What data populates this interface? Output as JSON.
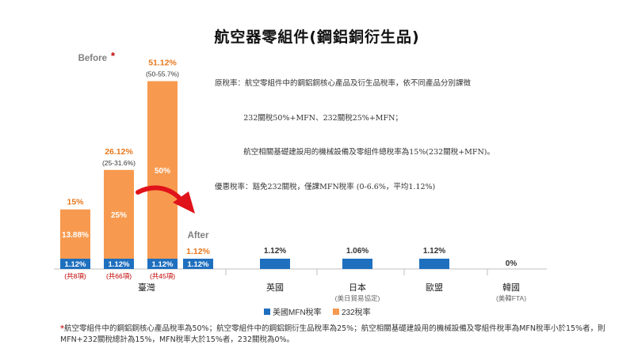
{
  "title": "航空器零組件(鋼鋁銅衍生品)",
  "note_lines": [
    "原稅率：航空零組件中的鋼鋁銅核心產品及衍生品稅率，依不同產品分別課徵",
    "            232關稅50%+MFN、232關稅25%+MFN；",
    "            航空相關基礎建設用的機械設備及零組件總稅率為15%(232關稅+MFN)。",
    "優惠稅率：豁免232關稅，僅課MFN稅率 (0-6.6%，平均1.12%)"
  ],
  "footnote_star": "*",
  "footnote": "航空零組件中的鋼鋁銅核心產品稅率為50%；航空零組件中的鋼鋁銅衍生品稅率為25%；航空相關基礎建設用的機械設備及零組件稅率為MFN稅率小於15%者，則MFN+232關稅總計為15%，MFN稅率大於15%者，232關稅為0%。",
  "before_label": "Before",
  "before_star": "*",
  "after_label": "After",
  "colors": {
    "mfn": "#1f6fbf",
    "s232": "#f79a4f",
    "before": "#7f7f7f",
    "orange_text": "#e8771c",
    "red": "#c00000",
    "arrow": "#e0121a",
    "axis": "#bfbfbf"
  },
  "chart_data": {
    "type": "bar",
    "stacked": true,
    "ylim": [
      0,
      55.7
    ],
    "series": [
      {
        "name": "美國MFN稅率",
        "color": "#1f6fbf"
      },
      {
        "name": "232稅率",
        "color": "#f79a4f"
      }
    ],
    "groups": [
      {
        "label": "臺灣",
        "sublabel": "",
        "bars": [
          {
            "mfn": 1.12,
            "s232": 13.88,
            "mfn_label": "1.12%",
            "s232_label": "13.88%",
            "total_label": "15%",
            "range": "",
            "count": "(共8項)"
          },
          {
            "mfn": 1.12,
            "s232": 25,
            "mfn_label": "1.12%",
            "s232_label": "25%",
            "total_label": "26.12%",
            "range": "(25-31.6%)",
            "count": "(共66項)"
          },
          {
            "mfn": 1.12,
            "s232": 50,
            "mfn_label": "1.12%",
            "s232_label": "50%",
            "total_label": "51.12%",
            "range": "(50-55.7%)",
            "count": "(共45項)"
          },
          {
            "mfn": 1.12,
            "s232": 0,
            "mfn_label": "1.12%",
            "s232_label": "",
            "total_label": "1.12%",
            "range": "",
            "count": ""
          }
        ]
      },
      {
        "label": "英國",
        "sublabel": "",
        "bars": [
          {
            "mfn": 1.12,
            "s232": 0,
            "total_label": "1.12%"
          }
        ]
      },
      {
        "label": "日本",
        "sublabel": "(美日貿易協定)",
        "bars": [
          {
            "mfn": 1.06,
            "s232": 0,
            "total_label": "1.06%"
          }
        ]
      },
      {
        "label": "歐盟",
        "sublabel": "",
        "bars": [
          {
            "mfn": 1.12,
            "s232": 0,
            "total_label": "1.12%"
          }
        ]
      },
      {
        "label": "韓國",
        "sublabel": "(美韓FTA)",
        "bars": [
          {
            "mfn": 0,
            "s232": 0,
            "total_label": "0%"
          }
        ]
      }
    ]
  }
}
